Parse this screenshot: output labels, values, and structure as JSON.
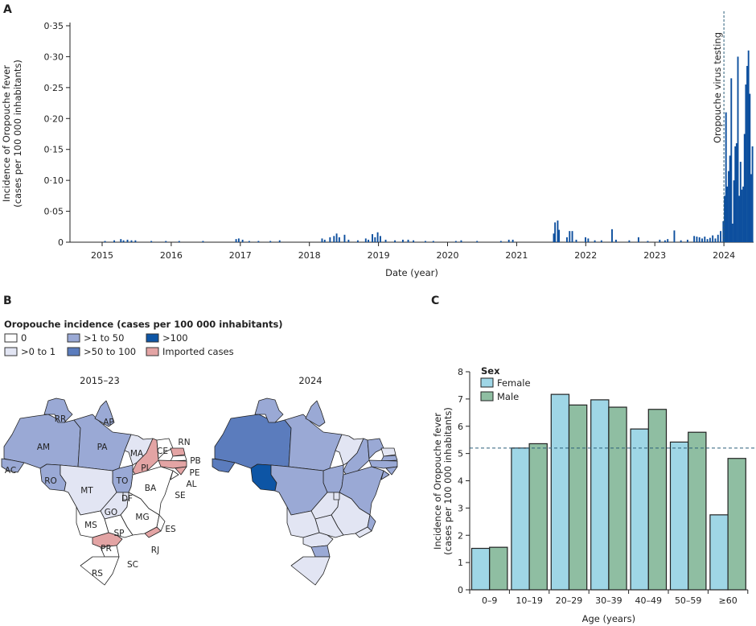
{
  "panels": {
    "a": "A",
    "b": "B",
    "c": "C"
  },
  "chart_data": [
    {
      "type": "bar",
      "ylabel_lines": [
        "Incidence of Oropouche fever",
        "(cases per 100 000 inhabitants)"
      ],
      "xlabel": "Date (year)",
      "ylim": [
        0,
        0.35
      ],
      "yticks": [
        "0",
        "0·05",
        "0·10",
        "0·15",
        "0·20",
        "0·25",
        "0·30",
        "0·35"
      ],
      "xticks": [
        "2015",
        "2016",
        "2017",
        "2018",
        "2019",
        "2020",
        "2021",
        "2022",
        "2023",
        "2024"
      ],
      "annotation": {
        "label": "Oropouche virus testing",
        "date": "2024-01-01"
      },
      "bar_color": "#0d4f9e",
      "series": [
        [
          "2015-01-12",
          0.002
        ],
        [
          "2015-03-02",
          0.003
        ],
        [
          "2015-04-06",
          0.005
        ],
        [
          "2015-04-20",
          0.003
        ],
        [
          "2015-05-11",
          0.004
        ],
        [
          "2015-06-01",
          0.003
        ],
        [
          "2015-06-22",
          0.003
        ],
        [
          "2015-09-14",
          0.002
        ],
        [
          "2015-11-30",
          0.002
        ],
        [
          "2016-02-08",
          0.002
        ],
        [
          "2016-06-13",
          0.002
        ],
        [
          "2016-12-05",
          0.005
        ],
        [
          "2016-12-19",
          0.006
        ],
        [
          "2017-01-09",
          0.004
        ],
        [
          "2017-02-13",
          0.002
        ],
        [
          "2017-04-03",
          0.002
        ],
        [
          "2017-06-05",
          0.002
        ],
        [
          "2017-07-24",
          0.003
        ],
        [
          "2018-03-05",
          0.006
        ],
        [
          "2018-03-19",
          0.004
        ],
        [
          "2018-04-16",
          0.008
        ],
        [
          "2018-05-07",
          0.01
        ],
        [
          "2018-05-21",
          0.014
        ],
        [
          "2018-06-04",
          0.008
        ],
        [
          "2018-07-02",
          0.012
        ],
        [
          "2018-07-23",
          0.004
        ],
        [
          "2018-09-10",
          0.003
        ],
        [
          "2018-10-22",
          0.006
        ],
        [
          "2018-11-05",
          0.004
        ],
        [
          "2018-11-26",
          0.013
        ],
        [
          "2018-12-10",
          0.008
        ],
        [
          "2018-12-24",
          0.016
        ],
        [
          "2019-01-07",
          0.01
        ],
        [
          "2019-02-04",
          0.004
        ],
        [
          "2019-03-25",
          0.003
        ],
        [
          "2019-05-06",
          0.004
        ],
        [
          "2019-06-03",
          0.004
        ],
        [
          "2019-07-01",
          0.003
        ],
        [
          "2019-09-02",
          0.002
        ],
        [
          "2019-10-14",
          0.002
        ],
        [
          "2020-02-10",
          0.002
        ],
        [
          "2020-03-09",
          0.003
        ],
        [
          "2020-06-01",
          0.002
        ],
        [
          "2020-10-05",
          0.002
        ],
        [
          "2020-11-16",
          0.004
        ],
        [
          "2020-12-07",
          0.004
        ],
        [
          "2021-07-12",
          0.014
        ],
        [
          "2021-07-19",
          0.032
        ],
        [
          "2021-08-02",
          0.035
        ],
        [
          "2021-08-09",
          0.02
        ],
        [
          "2021-09-20",
          0.008
        ],
        [
          "2021-10-04",
          0.018
        ],
        [
          "2021-10-18",
          0.018
        ],
        [
          "2021-11-08",
          0.004
        ],
        [
          "2021-12-27",
          0.008
        ],
        [
          "2022-01-10",
          0.006
        ],
        [
          "2022-02-14",
          0.003
        ],
        [
          "2022-03-21",
          0.003
        ],
        [
          "2022-05-16",
          0.021
        ],
        [
          "2022-06-06",
          0.004
        ],
        [
          "2022-08-15",
          0.003
        ],
        [
          "2022-10-03",
          0.008
        ],
        [
          "2022-11-21",
          0.002
        ],
        [
          "2023-01-23",
          0.004
        ],
        [
          "2023-02-20",
          0.003
        ],
        [
          "2023-03-06",
          0.005
        ],
        [
          "2023-04-10",
          0.019
        ],
        [
          "2023-05-15",
          0.003
        ],
        [
          "2023-06-19",
          0.004
        ],
        [
          "2023-07-24",
          0.01
        ],
        [
          "2023-08-07",
          0.009
        ],
        [
          "2023-08-21",
          0.008
        ],
        [
          "2023-09-04",
          0.006
        ],
        [
          "2023-09-18",
          0.009
        ],
        [
          "2023-10-02",
          0.005
        ],
        [
          "2023-10-16",
          0.007
        ],
        [
          "2023-10-30",
          0.011
        ],
        [
          "2023-11-13",
          0.006
        ],
        [
          "2023-11-27",
          0.012
        ],
        [
          "2023-12-11",
          0.018
        ],
        [
          "2023-12-25",
          0.034
        ],
        [
          "2024-01-01",
          0.075
        ],
        [
          "2024-01-08",
          0.21
        ],
        [
          "2024-01-15",
          0.09
        ],
        [
          "2024-01-22",
          0.115
        ],
        [
          "2024-01-29",
          0.14
        ],
        [
          "2024-02-05",
          0.265
        ],
        [
          "2024-02-12",
          0.03
        ],
        [
          "2024-02-19",
          0.1
        ],
        [
          "2024-02-26",
          0.155
        ],
        [
          "2024-03-04",
          0.16
        ],
        [
          "2024-03-11",
          0.3
        ],
        [
          "2024-03-18",
          0.075
        ],
        [
          "2024-03-25",
          0.13
        ],
        [
          "2024-04-01",
          0.085
        ],
        [
          "2024-04-08",
          0.09
        ],
        [
          "2024-04-15",
          0.175
        ],
        [
          "2024-04-22",
          0.255
        ],
        [
          "2024-04-29",
          0.285
        ],
        [
          "2024-05-06",
          0.31
        ],
        [
          "2024-05-13",
          0.24
        ],
        [
          "2024-05-20",
          0.11
        ],
        [
          "2024-05-27",
          0.155
        ]
      ]
    },
    {
      "type": "bar",
      "categories": [
        "0–9",
        "10–19",
        "20–29",
        "30–39",
        "40–49",
        "50–59",
        "≥60"
      ],
      "ylim": [
        0,
        8
      ],
      "yticks": [
        "0",
        "1",
        "2",
        "3",
        "4",
        "5",
        "6",
        "7",
        "8"
      ],
      "xlabel": "Age (years)",
      "ylabel_lines": [
        "Incidence of Oropouche fever",
        "(cases per 100 000 inhabitants)"
      ],
      "legend_title": "Sex",
      "reference_line": 5.2,
      "series": [
        {
          "name": "Female",
          "color": "#9fd6e6",
          "values": [
            1.52,
            5.2,
            7.17,
            6.97,
            5.9,
            5.42,
            2.75
          ]
        },
        {
          "name": "Male",
          "color": "#8fbea2",
          "values": [
            1.56,
            5.36,
            6.78,
            6.7,
            6.62,
            5.78,
            4.82
          ]
        }
      ]
    }
  ],
  "map_legend": {
    "title": "Oropouche incidence (cases per 100 000 inhabitants)",
    "categories": [
      {
        "label": "0",
        "color": "#ffffff"
      },
      {
        "label": ">0 to 1",
        "color": "#e2e5f3"
      },
      {
        "label": ">1 to 50",
        "color": "#9aa9d5"
      },
      {
        "label": ">50 to 100",
        "color": "#5b7cbd"
      },
      {
        "label": ">100",
        "color": "#0d55a5"
      },
      {
        "label": "Imported cases",
        "color": "#e3a4a4"
      }
    ]
  },
  "maps": [
    {
      "title": "2015–23",
      "show_labels": true,
      "states": {
        "AM": ">1 to 50",
        "RR": ">1 to 50",
        "AP": ">1 to 50",
        "PA": ">1 to 50",
        "AC": ">1 to 50",
        "RO": ">1 to 50",
        "TO": ">1 to 50",
        "MA": ">0 to 1",
        "MT": ">0 to 1",
        "GO": ">0 to 1",
        "DF": ">0 to 1",
        "PI": "Imported cases",
        "RN": "Imported cases",
        "PE": "Imported cases",
        "AL": "Imported cases",
        "PR": "Imported cases",
        "RJ": "Imported cases",
        "CE": "0",
        "PB": "0",
        "SE": "0",
        "BA": "0",
        "MG": "0",
        "ES": "0",
        "SP": "0",
        "MS": "0",
        "SC": "0",
        "RS": "0"
      }
    },
    {
      "title": "2024",
      "show_labels": false,
      "states": {
        "AM": ">50 to 100",
        "AC": ">50 to 100",
        "RO": ">100",
        "RR": ">1 to 50",
        "AP": ">1 to 50",
        "PA": ">1 to 50",
        "MT": ">1 to 50",
        "TO": ">1 to 50",
        "MA": ">0 to 1",
        "PI": ">1 to 50",
        "CE": ">1 to 50",
        "RN": ">0 to 1",
        "PB": ">1 to 50",
        "PE": ">1 to 50",
        "AL": ">1 to 50",
        "SE": ">1 to 50",
        "BA": ">1 to 50",
        "ES": ">1 to 50",
        "MG": ">0 to 1",
        "GO": ">0 to 1",
        "DF": ">0 to 1",
        "MS": ">0 to 1",
        "SP": ">0 to 1",
        "PR": ">0 to 1",
        "RJ": ">0 to 1",
        "SC": ">1 to 50",
        "RS": ">0 to 1"
      }
    }
  ]
}
